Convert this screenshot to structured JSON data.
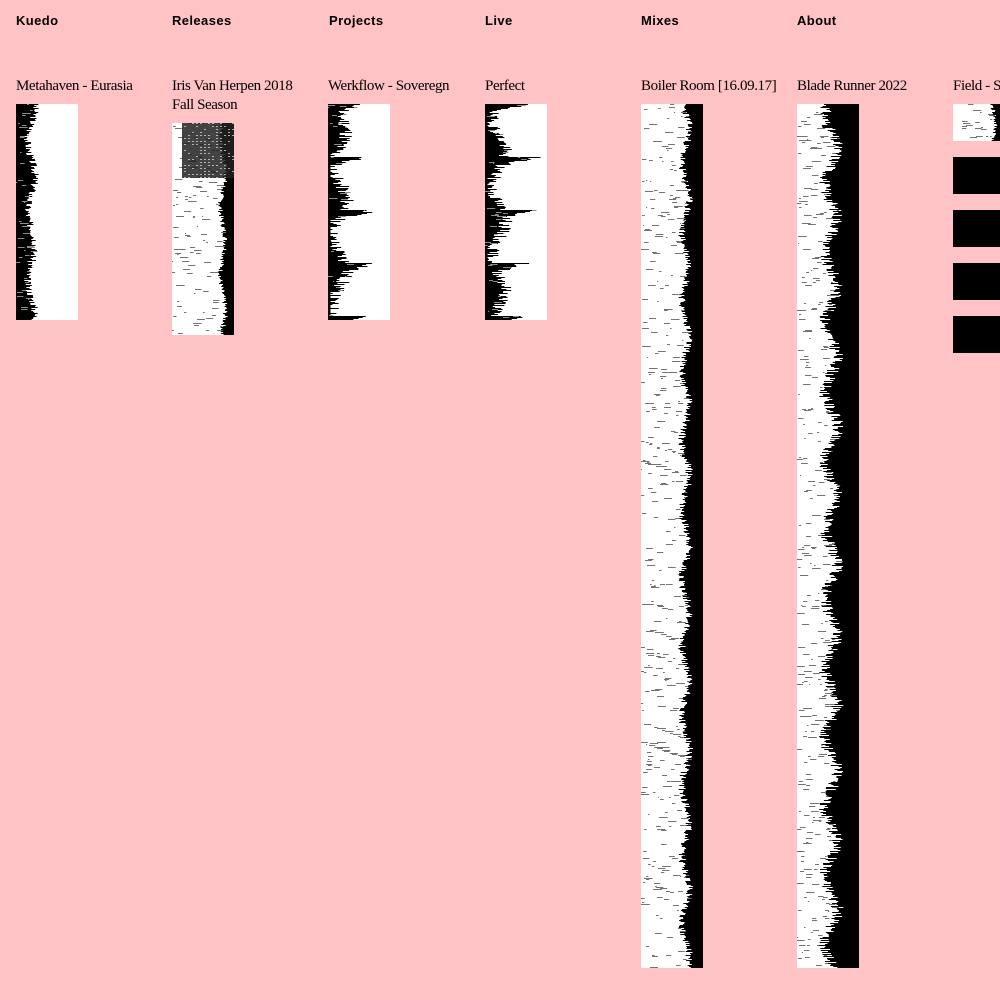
{
  "site": {
    "name": "Kuedo"
  },
  "nav": {
    "home": "Kuedo",
    "releases": "Releases",
    "projects": "Projects",
    "live": "Live",
    "mixes": "Mixes",
    "about": "About"
  },
  "columns": [
    {
      "title": "Metahaven - Eurasia"
    },
    {
      "title": "Iris Van Herpen 2018 Fall Season"
    },
    {
      "title": "Werkflow - Soveregn"
    },
    {
      "title": "Perfect"
    },
    {
      "title": "Boiler Room [16.09.17]"
    },
    {
      "title": "Blade Runner 2022"
    },
    {
      "title": "Field - Sy"
    }
  ],
  "colors": {
    "background": "#ffc2c5",
    "ink": "#000000",
    "paper": "#ffffff"
  }
}
